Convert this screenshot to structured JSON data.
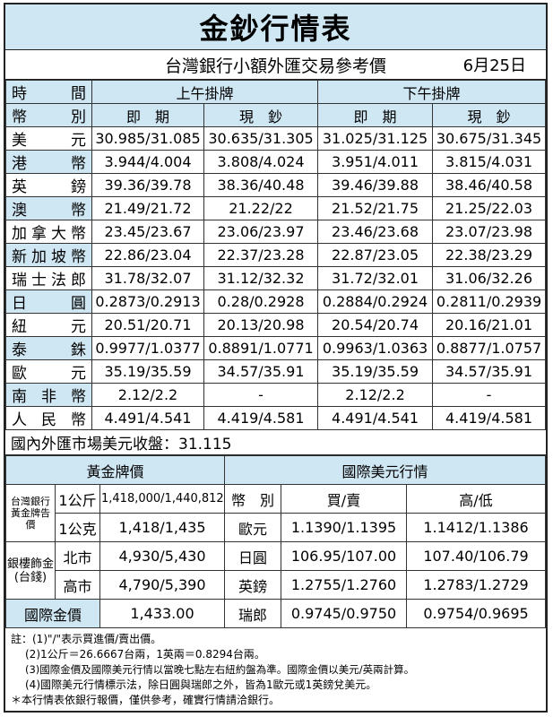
{
  "title": "金鈔行情表",
  "subtitle": "台灣銀行小額外匯交易參考價",
  "date": "6月25日",
  "fx": {
    "hdr_time": "時　間",
    "hdr_am": "上午掛牌",
    "hdr_pm": "下午掛牌",
    "hdr_currency": "幣　別",
    "hdr_spot": "即　期",
    "hdr_cash": "現　鈔",
    "rows": [
      {
        "name": "美元",
        "am_spot": "30.985/31.085",
        "am_cash": "30.635/31.305",
        "pm_spot": "31.025/31.125",
        "pm_cash": "30.675/31.345"
      },
      {
        "name": "港幣",
        "am_spot": "3.944/4.004",
        "am_cash": "3.808/4.024",
        "pm_spot": "3.951/4.011",
        "pm_cash": "3.815/4.031"
      },
      {
        "name": "英鎊",
        "am_spot": "39.36/39.78",
        "am_cash": "38.36/40.48",
        "pm_spot": "39.46/39.88",
        "pm_cash": "38.46/40.58"
      },
      {
        "name": "澳幣",
        "am_spot": "21.49/21.72",
        "am_cash": "21.22/22",
        "pm_spot": "21.52/21.75",
        "pm_cash": "21.25/22.03"
      },
      {
        "name": "加拿大幣",
        "am_spot": "23.45/23.67",
        "am_cash": "23.06/23.97",
        "pm_spot": "23.46/23.68",
        "pm_cash": "23.07/23.98"
      },
      {
        "name": "新加坡幣",
        "am_spot": "22.86/23.04",
        "am_cash": "22.37/23.28",
        "pm_spot": "22.87/23.05",
        "pm_cash": "22.38/23.29"
      },
      {
        "name": "瑞士法郎",
        "am_spot": "31.78/32.07",
        "am_cash": "31.12/32.32",
        "pm_spot": "31.72/32.01",
        "pm_cash": "31.06/32.26"
      },
      {
        "name": "日圓",
        "am_spot": "0.2873/0.2913",
        "am_cash": "0.28/0.2928",
        "pm_spot": "0.2884/0.2924",
        "pm_cash": "0.2811/0.2939"
      },
      {
        "name": "紐元",
        "am_spot": "20.51/20.71",
        "am_cash": "20.13/20.98",
        "pm_spot": "20.54/20.74",
        "pm_cash": "20.16/21.01"
      },
      {
        "name": "泰銖",
        "am_spot": "0.9977/1.0377",
        "am_cash": "0.8891/1.0771",
        "pm_spot": "0.9963/1.0363",
        "pm_cash": "0.8877/1.0757"
      },
      {
        "name": "歐元",
        "am_spot": "35.19/35.59",
        "am_cash": "34.57/35.91",
        "pm_spot": "35.19/35.59",
        "pm_cash": "34.57/35.91"
      },
      {
        "name": "南非幣",
        "am_spot": "2.12/2.2",
        "am_cash": "-",
        "pm_spot": "2.12/2.2",
        "pm_cash": "-"
      },
      {
        "name": "人民幣",
        "am_spot": "4.491/4.541",
        "am_cash": "4.419/4.581",
        "pm_spot": "4.491/4.541",
        "pm_cash": "4.419/4.581"
      }
    ]
  },
  "usd_close": "國內外匯市場美元收盤：31.115",
  "gold": {
    "header": "黃金牌價",
    "bot_label": "台灣銀行黃金牌告價",
    "bot_kg_unit": "1公斤",
    "bot_kg_value": "1,418,000/1,440,812",
    "bot_g_unit": "1公克",
    "bot_g_value": "1,418/1,435",
    "jewel_label": "銀樓飾金(台錢)",
    "taipei": "北市",
    "taipei_value": "4,930/5,430",
    "kaohsiung": "高市",
    "kaohsiung_value": "4,790/5,390",
    "intl_label": "國際金價",
    "intl_value": "1,433.00"
  },
  "intl_usd": {
    "header": "國際美元行情",
    "hdr_currency": "幣　別",
    "hdr_buysell": "買/賣",
    "hdr_highlow": "高/低",
    "rows": [
      {
        "name": "歐元",
        "buysell": "1.1390/1.1395",
        "highlow": "1.1412/1.1386"
      },
      {
        "name": "日圓",
        "buysell": "106.95/107.00",
        "highlow": "107.40/106.79"
      },
      {
        "name": "英鎊",
        "buysell": "1.2755/1.2760",
        "highlow": "1.2783/1.2729"
      },
      {
        "name": "瑞郎",
        "buysell": "0.9745/0.9750",
        "highlow": "0.9754/0.9695"
      }
    ]
  },
  "notes": [
    "註：(1)\"/\"表示買進價/賣出價。",
    "(2)1公斤＝26.6667台兩，1英兩＝0.8294台兩。",
    "(3)國際金價及國際美元行情以當晚七點左右紐約盤為準。國際金價以美元/英兩計算。",
    "(4)國際美元行情標示法，除日圓與瑞郎之外，皆為1歐元或1英鎊兌美元。",
    "＊本行情表依銀行報價，僅供參考，確實行情請洽銀行。"
  ]
}
